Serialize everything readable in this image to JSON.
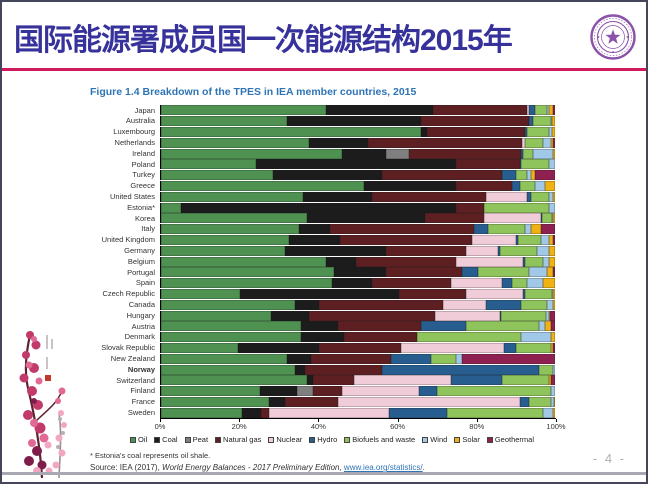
{
  "slide": {
    "title": "国际能源署成员国一次能源结构2015年",
    "page_number": "- 4 -"
  },
  "figure": {
    "title": "Figure 1.4  Breakdown of the TPES in IEA member countries, 2015",
    "footnote": "* Estonia's coal represents oil shale.",
    "source_prefix": "Source: IEA (2017), ",
    "source_italic": "World Energy Balances - 2017 Preliminary Edition",
    "source_sep": ", ",
    "source_link": "www.iea.org/statistics/",
    "source_end": "."
  },
  "chart_data": {
    "type": "bar",
    "stacked": true,
    "orientation": "horizontal",
    "title": "Figure 1.4 Breakdown of the TPES in IEA member countries, 2015",
    "unit": "% of TPES",
    "xlim": [
      0,
      100
    ],
    "x_ticks": [
      "0%",
      "20%",
      "40%",
      "60%",
      "80%",
      "100%"
    ],
    "legend_position": "bottom",
    "series_names": [
      "Oil",
      "Coal",
      "Peat",
      "Natural gas",
      "Nuclear",
      "Hydro",
      "Biofuels and waste",
      "Wind",
      "Solar",
      "Geothermal"
    ],
    "series_colors": [
      "#4e9150",
      "#1c1c1c",
      "#7f7f7f",
      "#5e1f23",
      "#f0ccd9",
      "#275d8f",
      "#8fc35c",
      "#a2c8e8",
      "#f0b213",
      "#8e2150"
    ],
    "categories": [
      "Japan",
      "Australia",
      "Luxembourg",
      "Netherlands",
      "Ireland",
      "Poland",
      "Turkey",
      "Greece",
      "United States",
      "Estonia*",
      "Korea",
      "Italy",
      "United Kingdom",
      "Germany",
      "Belgium",
      "Portugal",
      "Spain",
      "Czech Republic",
      "Canada",
      "Hungary",
      "Austria",
      "Denmark",
      "Slovak Republic",
      "New Zealand",
      "Norway",
      "Switzerland",
      "Finland",
      "France",
      "Sweden"
    ],
    "bold_categories": [
      "Norway"
    ],
    "rows": [
      [
        42,
        27,
        0,
        24,
        0.5,
        1.5,
        3,
        0.5,
        1,
        0.5
      ],
      [
        32,
        34,
        0,
        27.5,
        0,
        1,
        4.5,
        0.3,
        0.7,
        0
      ],
      [
        66,
        1.5,
        0,
        25,
        0,
        0.5,
        5.5,
        0.7,
        0.8,
        0
      ],
      [
        37.5,
        15,
        0,
        39,
        1,
        0,
        4.5,
        2,
        0.5,
        0.5
      ],
      [
        46,
        11,
        6,
        28.5,
        0,
        0.5,
        2.5,
        5,
        0.5,
        0
      ],
      [
        24,
        51,
        0,
        16,
        0,
        0.5,
        7,
        1.5,
        0,
        0
      ],
      [
        28.5,
        27.5,
        0,
        30.5,
        0,
        3.5,
        3,
        1,
        1,
        5
      ],
      [
        51.5,
        23.5,
        0,
        14,
        0,
        2,
        4,
        2.5,
        2.5,
        0
      ],
      [
        36,
        17.5,
        0,
        29,
        10.5,
        1,
        4.5,
        1,
        0.5,
        0
      ],
      [
        5,
        70,
        0,
        7,
        0,
        0,
        16.5,
        1.5,
        0,
        0
      ],
      [
        37,
        30,
        0,
        15,
        14.5,
        0.3,
        2.5,
        0.2,
        0.5,
        0
      ],
      [
        35,
        8,
        0,
        36.5,
        0,
        3.5,
        9.5,
        1.5,
        2.5,
        3.5
      ],
      [
        32.5,
        13,
        0,
        33.5,
        11,
        0.5,
        6,
        2,
        1,
        0.5
      ],
      [
        31.5,
        25.5,
        0,
        20.5,
        8,
        0.5,
        9.5,
        3,
        1.5,
        0
      ],
      [
        42,
        7.5,
        0,
        25.5,
        17,
        0.5,
        4.5,
        1.5,
        1.5,
        0
      ],
      [
        44,
        13,
        0,
        19.5,
        0,
        4,
        13,
        4.5,
        1.5,
        0.5
      ],
      [
        43.5,
        10,
        0,
        20,
        13,
        2.5,
        4,
        4,
        3,
        0
      ],
      [
        20,
        40.5,
        0,
        17,
        14.5,
        0.3,
        7,
        0.2,
        0.5,
        0
      ],
      [
        34,
        6,
        0,
        31.5,
        11,
        9,
        6.5,
        1.5,
        0.5,
        0
      ],
      [
        28,
        9.5,
        0,
        32,
        16.5,
        0.2,
        11.5,
        0.7,
        0.3,
        1.3
      ],
      [
        35.5,
        9.5,
        0,
        21,
        0,
        11.5,
        18.5,
        1.5,
        1.5,
        1
      ],
      [
        35.5,
        11,
        0,
        18.5,
        0,
        0,
        26.5,
        7.5,
        1,
        0
      ],
      [
        19.5,
        20.5,
        0,
        21,
        26,
        3,
        9,
        0,
        0.5,
        0.5
      ],
      [
        32,
        6,
        0,
        20.5,
        0,
        10,
        6.5,
        1.5,
        0,
        23.5
      ],
      [
        34,
        2.5,
        0,
        19.5,
        0,
        40,
        3.5,
        0.5,
        0,
        0
      ],
      [
        37,
        1.5,
        0,
        10.5,
        24.5,
        13,
        12,
        0,
        0.5,
        1
      ],
      [
        25,
        9.5,
        4,
        7.5,
        19.5,
        4.5,
        29,
        1,
        0,
        0
      ],
      [
        27.5,
        4,
        0,
        13.5,
        46,
        2.5,
        5.5,
        0.7,
        0.3,
        0
      ],
      [
        20.5,
        5,
        0,
        2,
        30.5,
        14.5,
        24.5,
        2.5,
        0.5,
        0
      ]
    ]
  }
}
